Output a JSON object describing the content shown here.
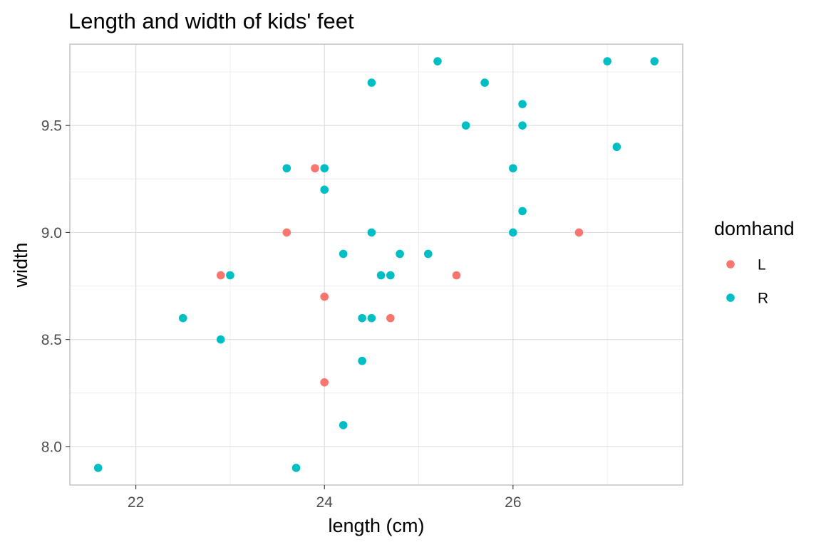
{
  "chart_data": {
    "type": "scatter",
    "title": "Length and width of kids' feet",
    "xlabel": "length (cm)",
    "ylabel": "width",
    "xlim": [
      21.3,
      27.8
    ],
    "ylim": [
      7.82,
      9.88
    ],
    "x_ticks": [
      22,
      24,
      26
    ],
    "x_tick_labels": [
      "22",
      "24",
      "26"
    ],
    "y_ticks": [
      8.0,
      8.5,
      9.0,
      9.5
    ],
    "y_tick_labels": [
      "8.0",
      "8.5",
      "9.0",
      "9.5"
    ],
    "grid": true,
    "legend": {
      "title": "domhand",
      "placement": "right",
      "entries": [
        {
          "label": "L",
          "color": "#F8766D"
        },
        {
          "label": "R",
          "color": "#00BFC4"
        }
      ]
    },
    "series": [
      {
        "name": "L",
        "color": "#F8766D",
        "points": [
          {
            "x": 23.9,
            "y": 9.3
          },
          {
            "x": 23.6,
            "y": 9.0
          },
          {
            "x": 26.7,
            "y": 9.0
          },
          {
            "x": 22.9,
            "y": 8.8
          },
          {
            "x": 25.4,
            "y": 8.8
          },
          {
            "x": 24.0,
            "y": 8.7
          },
          {
            "x": 24.7,
            "y": 8.6
          },
          {
            "x": 24.0,
            "y": 8.3
          }
        ]
      },
      {
        "name": "R",
        "color": "#00BFC4",
        "points": [
          {
            "x": 25.2,
            "y": 9.8
          },
          {
            "x": 27.0,
            "y": 9.8
          },
          {
            "x": 27.5,
            "y": 9.8
          },
          {
            "x": 24.5,
            "y": 9.7
          },
          {
            "x": 25.7,
            "y": 9.7
          },
          {
            "x": 26.1,
            "y": 9.6
          },
          {
            "x": 25.5,
            "y": 9.5
          },
          {
            "x": 26.1,
            "y": 9.5
          },
          {
            "x": 27.1,
            "y": 9.4
          },
          {
            "x": 23.6,
            "y": 9.3
          },
          {
            "x": 24.0,
            "y": 9.3
          },
          {
            "x": 26.0,
            "y": 9.3
          },
          {
            "x": 24.0,
            "y": 9.2
          },
          {
            "x": 26.1,
            "y": 9.1
          },
          {
            "x": 24.5,
            "y": 9.0
          },
          {
            "x": 26.0,
            "y": 9.0
          },
          {
            "x": 24.2,
            "y": 8.9
          },
          {
            "x": 24.8,
            "y": 8.9
          },
          {
            "x": 25.1,
            "y": 8.9
          },
          {
            "x": 23.0,
            "y": 8.8
          },
          {
            "x": 24.6,
            "y": 8.8
          },
          {
            "x": 24.7,
            "y": 8.8
          },
          {
            "x": 22.5,
            "y": 8.6
          },
          {
            "x": 24.4,
            "y": 8.6
          },
          {
            "x": 24.5,
            "y": 8.6
          },
          {
            "x": 22.9,
            "y": 8.5
          },
          {
            "x": 24.4,
            "y": 8.4
          },
          {
            "x": 24.2,
            "y": 8.1
          },
          {
            "x": 21.6,
            "y": 7.9
          },
          {
            "x": 23.7,
            "y": 7.9
          }
        ]
      }
    ]
  }
}
